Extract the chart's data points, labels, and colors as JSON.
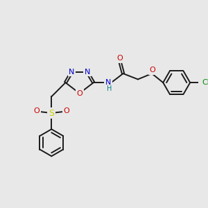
{
  "bg_color": "#e8e8e8",
  "bond_color": "#1a1a1a",
  "N_color": "#0000cc",
  "O_color": "#cc0000",
  "S_color": "#cccc00",
  "Cl_color": "#008800",
  "NH_color": "#008080",
  "figsize": [
    3.0,
    3.0
  ],
  "dpi": 100,
  "xlim": [
    0,
    12
  ],
  "ylim": [
    0,
    12
  ]
}
